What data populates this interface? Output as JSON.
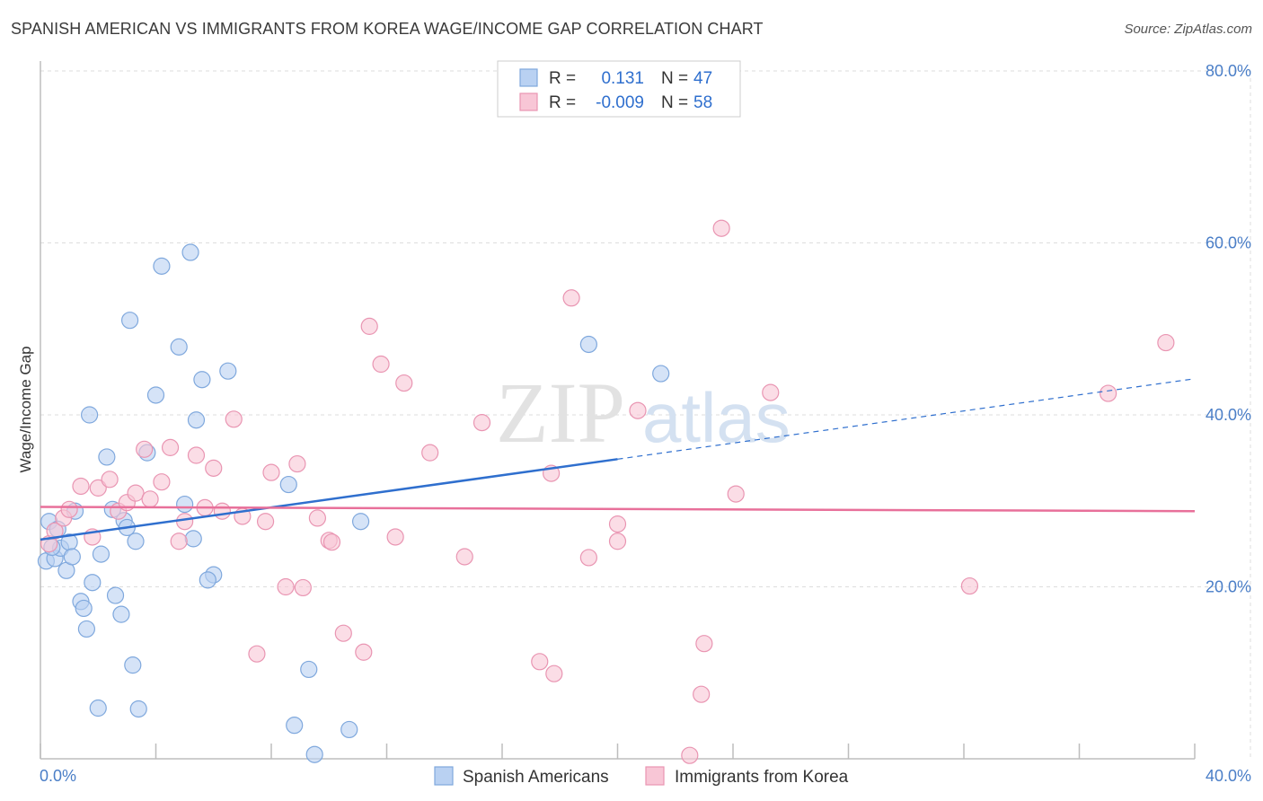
{
  "title": "SPANISH AMERICAN VS IMMIGRANTS FROM KOREA WAGE/INCOME GAP CORRELATION CHART",
  "source": "Source: ZipAtlas.com",
  "watermark": {
    "zip": "ZIP",
    "atlas": "atlas"
  },
  "colors": {
    "blue_fill": "#b9d1f2",
    "blue_stroke": "#7fa8dd",
    "blue_line": "#2f6fce",
    "pink_fill": "#f8c6d6",
    "pink_stroke": "#e995b2",
    "pink_line": "#e8709a",
    "tick_text": "#4a7ec7",
    "grid": "#dddddd"
  },
  "legend": {
    "rows": [
      {
        "r_label": "R =",
        "r_value": "0.131",
        "n_label": "N =",
        "n_value": "47"
      },
      {
        "r_label": "R =",
        "r_value": "-0.009",
        "n_label": "N =",
        "n_value": "58"
      }
    ]
  },
  "chart_data": {
    "type": "scatter",
    "title": "SPANISH AMERICAN VS IMMIGRANTS FROM KOREA WAGE/INCOME GAP CORRELATION CHART",
    "xlabel": "",
    "ylabel": "Wage/Income Gap",
    "xlim": [
      0,
      40
    ],
    "ylim": [
      0,
      80
    ],
    "x_tick_labels": [
      "0.0%",
      "40.0%"
    ],
    "y_ticks": [
      20,
      40,
      60,
      80
    ],
    "y_tick_labels": [
      "20.0%",
      "40.0%",
      "60.0%",
      "80.0%"
    ],
    "grid": true,
    "legend_position": "top-center",
    "series": [
      {
        "name": "Spanish Americans",
        "R": 0.131,
        "N": 47,
        "trend": {
          "x0": 0,
          "y0": 25.5,
          "x_solid_end": 20,
          "x_end": 40,
          "y_end": 44.2
        },
        "points": [
          [
            0.2,
            23.0
          ],
          [
            0.3,
            27.6
          ],
          [
            0.5,
            23.3
          ],
          [
            0.6,
            26.7
          ],
          [
            0.7,
            24.5
          ],
          [
            0.9,
            21.9
          ],
          [
            1.0,
            25.2
          ],
          [
            1.1,
            23.5
          ],
          [
            1.2,
            28.8
          ],
          [
            1.4,
            18.3
          ],
          [
            1.5,
            17.5
          ],
          [
            1.6,
            15.1
          ],
          [
            1.7,
            40.0
          ],
          [
            1.8,
            20.5
          ],
          [
            2.0,
            5.9
          ],
          [
            2.1,
            23.8
          ],
          [
            2.3,
            35.1
          ],
          [
            2.6,
            19.0
          ],
          [
            2.8,
            16.8
          ],
          [
            2.9,
            27.7
          ],
          [
            3.0,
            26.9
          ],
          [
            3.2,
            10.9
          ],
          [
            3.3,
            25.3
          ],
          [
            3.4,
            5.8
          ],
          [
            3.7,
            35.6
          ],
          [
            4.0,
            42.3
          ],
          [
            4.2,
            57.3
          ],
          [
            4.8,
            47.9
          ],
          [
            5.0,
            29.6
          ],
          [
            5.2,
            58.9
          ],
          [
            5.3,
            25.6
          ],
          [
            5.4,
            39.4
          ],
          [
            5.6,
            44.1
          ],
          [
            6.0,
            21.4
          ],
          [
            6.5,
            45.1
          ],
          [
            8.6,
            31.9
          ],
          [
            8.8,
            3.9
          ],
          [
            9.3,
            10.4
          ],
          [
            9.5,
            0.5
          ],
          [
            10.7,
            3.4
          ],
          [
            11.1,
            27.6
          ],
          [
            19.0,
            48.2
          ],
          [
            21.5,
            44.8
          ],
          [
            2.5,
            29.0
          ],
          [
            3.1,
            51.0
          ],
          [
            5.8,
            20.8
          ],
          [
            0.4,
            24.6
          ]
        ]
      },
      {
        "name": "Immigrants from Korea",
        "R": -0.009,
        "N": 58,
        "trend": {
          "x0": 0,
          "y0": 29.3,
          "x_end": 40,
          "y_end": 28.8
        },
        "points": [
          [
            0.3,
            25.0
          ],
          [
            0.5,
            26.5
          ],
          [
            0.8,
            28.0
          ],
          [
            1.0,
            29.0
          ],
          [
            1.4,
            31.7
          ],
          [
            1.8,
            25.8
          ],
          [
            2.0,
            31.5
          ],
          [
            2.4,
            32.5
          ],
          [
            2.7,
            28.8
          ],
          [
            3.0,
            29.8
          ],
          [
            3.3,
            30.9
          ],
          [
            3.6,
            36.0
          ],
          [
            3.8,
            30.2
          ],
          [
            4.2,
            32.2
          ],
          [
            4.5,
            36.2
          ],
          [
            4.8,
            25.3
          ],
          [
            5.0,
            27.6
          ],
          [
            5.4,
            35.3
          ],
          [
            5.7,
            29.2
          ],
          [
            6.0,
            33.8
          ],
          [
            6.3,
            28.8
          ],
          [
            6.7,
            39.5
          ],
          [
            7.0,
            28.2
          ],
          [
            7.5,
            12.2
          ],
          [
            7.8,
            27.6
          ],
          [
            8.0,
            33.3
          ],
          [
            8.5,
            20.0
          ],
          [
            8.9,
            34.3
          ],
          [
            9.1,
            19.9
          ],
          [
            9.6,
            28.0
          ],
          [
            10.0,
            25.4
          ],
          [
            10.1,
            25.2
          ],
          [
            10.5,
            14.6
          ],
          [
            11.2,
            12.4
          ],
          [
            11.4,
            50.3
          ],
          [
            11.8,
            45.9
          ],
          [
            12.3,
            25.8
          ],
          [
            12.6,
            43.7
          ],
          [
            13.5,
            35.6
          ],
          [
            14.7,
            23.5
          ],
          [
            15.3,
            39.1
          ],
          [
            17.3,
            11.3
          ],
          [
            17.7,
            33.2
          ],
          [
            17.8,
            9.9
          ],
          [
            18.4,
            53.6
          ],
          [
            19.0,
            23.4
          ],
          [
            20.0,
            27.3
          ],
          [
            20.0,
            25.3
          ],
          [
            20.7,
            40.5
          ],
          [
            22.5,
            0.4
          ],
          [
            22.9,
            7.5
          ],
          [
            23.0,
            13.4
          ],
          [
            23.6,
            61.7
          ],
          [
            24.1,
            30.8
          ],
          [
            25.3,
            42.6
          ],
          [
            32.2,
            20.1
          ],
          [
            37.0,
            42.5
          ],
          [
            39.0,
            48.4
          ]
        ]
      }
    ]
  },
  "bottom_legend": [
    "Spanish Americans",
    "Immigrants from Korea"
  ]
}
